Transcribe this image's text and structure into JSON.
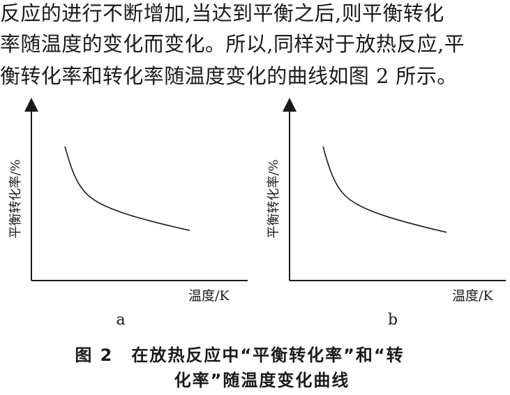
{
  "paragraph": {
    "lines": [
      "反应的进行不断增加,当达到平衡之后,则平衡转化",
      "率随温度的变化而变化。所以,同样对于放热反应,平",
      "衡转化率和转化率随温度变化的曲线如图 2 所示。"
    ]
  },
  "figures": [
    {
      "sub_label": "a",
      "xlabel": "温度/K",
      "ylabel": "平衡转化率/%"
    },
    {
      "sub_label": "b",
      "xlabel": "温度/K",
      "ylabel": "平衡转化率/%"
    }
  ],
  "caption": {
    "line1": "图 2　在放热反应中“平衡转化率”和“转",
    "line2": "化率”随温度变化曲线"
  },
  "chart_data": [
    {
      "type": "line",
      "xlabel": "温度/K",
      "ylabel": "平衡转化率/%",
      "series": [
        {
          "x": [
            0,
            4,
            8,
            13,
            20,
            30,
            45,
            60,
            80,
            100
          ],
          "y": [
            100,
            82,
            68,
            56,
            46,
            38,
            30,
            24,
            17,
            11
          ]
        }
      ],
      "grid": false
    },
    {
      "type": "line",
      "xlabel": "温度/K",
      "ylabel": "平衡转化率/%",
      "series": [
        {
          "x": [
            0,
            4,
            8,
            13,
            20,
            30,
            45,
            60,
            80,
            100
          ],
          "y": [
            100,
            82,
            68,
            56,
            46,
            38,
            30,
            24,
            17,
            11
          ]
        }
      ],
      "grid": false
    }
  ]
}
